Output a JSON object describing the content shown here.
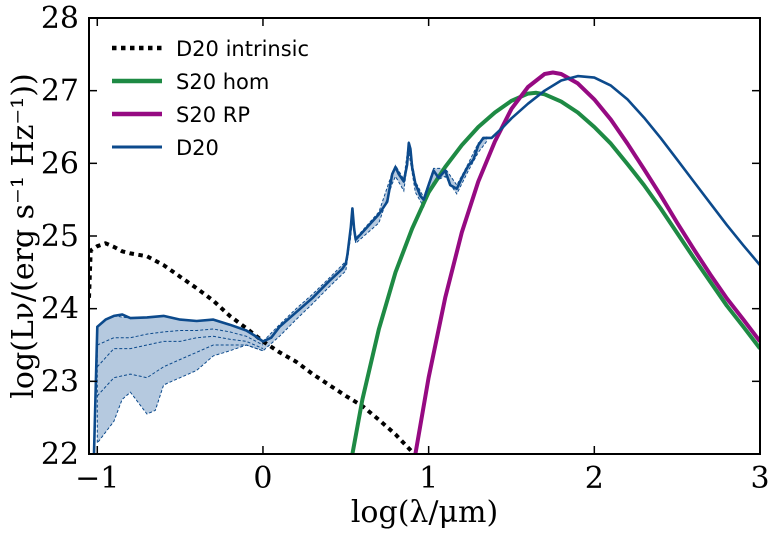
{
  "chart_data": {
    "type": "line",
    "xlabel": "log(λ/μm)",
    "ylabel": "log(Lν/(erg s⁻¹ Hz⁻¹))",
    "xlim": [
      -1.05,
      3
    ],
    "ylim": [
      22,
      28
    ],
    "xticks": [
      -1,
      0,
      1,
      2,
      3
    ],
    "xtick_labels": [
      "−1",
      "0",
      "1",
      "2",
      "3"
    ],
    "yticks": [
      22,
      23,
      24,
      25,
      26,
      27,
      28
    ],
    "ytick_labels": [
      "22",
      "23",
      "24",
      "25",
      "26",
      "27",
      "28"
    ],
    "grid": false,
    "legend_position": "top-left",
    "colors": {
      "d20_intrinsic": "#000000",
      "s20_hom": "#1e8a44",
      "s20_rp": "#960a82",
      "d20": "#0c4a8c",
      "band_fill": "#b5c9df"
    },
    "series": [
      {
        "name": "D20 intrinsic",
        "style": "dotted",
        "points": [
          [
            -1.05,
            24.15
          ],
          [
            -1.04,
            24.8
          ],
          [
            -1.0,
            24.86
          ],
          [
            -0.95,
            24.9
          ],
          [
            -0.9,
            24.85
          ],
          [
            -0.85,
            24.79
          ],
          [
            -0.8,
            24.76
          ],
          [
            -0.7,
            24.72
          ],
          [
            -0.6,
            24.6
          ],
          [
            -0.5,
            24.44
          ],
          [
            -0.4,
            24.28
          ],
          [
            -0.3,
            24.11
          ],
          [
            -0.2,
            23.9
          ],
          [
            -0.1,
            23.73
          ],
          [
            0.0,
            23.55
          ],
          [
            0.1,
            23.4
          ],
          [
            0.2,
            23.27
          ],
          [
            0.3,
            23.1
          ],
          [
            0.4,
            22.95
          ],
          [
            0.5,
            22.8
          ],
          [
            0.6,
            22.66
          ],
          [
            0.7,
            22.47
          ],
          [
            0.8,
            22.27
          ],
          [
            0.85,
            22.15
          ],
          [
            0.9,
            22.03
          ],
          [
            0.93,
            21.97
          ]
        ]
      },
      {
        "name": "S20 hom",
        "style": "solid",
        "points": [
          [
            0.54,
            22.0
          ],
          [
            0.6,
            22.75
          ],
          [
            0.7,
            23.72
          ],
          [
            0.8,
            24.5
          ],
          [
            0.9,
            25.1
          ],
          [
            1.0,
            25.6
          ],
          [
            1.1,
            25.95
          ],
          [
            1.2,
            26.25
          ],
          [
            1.3,
            26.5
          ],
          [
            1.4,
            26.7
          ],
          [
            1.5,
            26.86
          ],
          [
            1.6,
            26.96
          ],
          [
            1.65,
            26.97
          ],
          [
            1.7,
            26.95
          ],
          [
            1.8,
            26.85
          ],
          [
            1.9,
            26.7
          ],
          [
            2.0,
            26.5
          ],
          [
            2.1,
            26.27
          ],
          [
            2.2,
            25.99
          ],
          [
            2.3,
            25.7
          ],
          [
            2.4,
            25.38
          ],
          [
            2.5,
            25.04
          ],
          [
            2.6,
            24.7
          ],
          [
            2.7,
            24.37
          ],
          [
            2.8,
            24.04
          ],
          [
            2.9,
            23.75
          ],
          [
            3.0,
            23.45
          ]
        ]
      },
      {
        "name": "S20 RP",
        "style": "solid",
        "points": [
          [
            0.92,
            22.0
          ],
          [
            1.0,
            23.05
          ],
          [
            1.1,
            24.15
          ],
          [
            1.2,
            25.05
          ],
          [
            1.3,
            25.75
          ],
          [
            1.4,
            26.3
          ],
          [
            1.5,
            26.75
          ],
          [
            1.6,
            27.05
          ],
          [
            1.7,
            27.23
          ],
          [
            1.75,
            27.25
          ],
          [
            1.8,
            27.23
          ],
          [
            1.9,
            27.1
          ],
          [
            2.0,
            26.88
          ],
          [
            2.1,
            26.6
          ],
          [
            2.2,
            26.27
          ],
          [
            2.3,
            25.92
          ],
          [
            2.4,
            25.56
          ],
          [
            2.5,
            25.18
          ],
          [
            2.6,
            24.82
          ],
          [
            2.7,
            24.47
          ],
          [
            2.8,
            24.14
          ],
          [
            2.9,
            23.85
          ],
          [
            3.0,
            23.55
          ]
        ]
      },
      {
        "name": "D20",
        "style": "solid",
        "points": [
          [
            -1.02,
            22.0
          ],
          [
            -1.0,
            23.75
          ],
          [
            -0.95,
            23.85
          ],
          [
            -0.9,
            23.9
          ],
          [
            -0.85,
            23.92
          ],
          [
            -0.8,
            23.87
          ],
          [
            -0.7,
            23.88
          ],
          [
            -0.6,
            23.9
          ],
          [
            -0.5,
            23.85
          ],
          [
            -0.4,
            23.83
          ],
          [
            -0.3,
            23.85
          ],
          [
            -0.2,
            23.78
          ],
          [
            -0.1,
            23.7
          ],
          [
            -0.05,
            23.63
          ],
          [
            0.0,
            23.55
          ],
          [
            0.05,
            23.6
          ],
          [
            0.1,
            23.75
          ],
          [
            0.2,
            23.95
          ],
          [
            0.3,
            24.15
          ],
          [
            0.4,
            24.38
          ],
          [
            0.48,
            24.55
          ],
          [
            0.5,
            24.62
          ],
          [
            0.51,
            24.75
          ],
          [
            0.53,
            25.12
          ],
          [
            0.54,
            25.38
          ],
          [
            0.55,
            25.1
          ],
          [
            0.56,
            24.95
          ],
          [
            0.6,
            25.05
          ],
          [
            0.7,
            25.3
          ],
          [
            0.75,
            25.47
          ],
          [
            0.78,
            25.85
          ],
          [
            0.8,
            25.95
          ],
          [
            0.82,
            25.85
          ],
          [
            0.85,
            25.75
          ],
          [
            0.87,
            25.98
          ],
          [
            0.88,
            26.28
          ],
          [
            0.89,
            26.2
          ],
          [
            0.9,
            25.95
          ],
          [
            0.92,
            25.72
          ],
          [
            0.95,
            25.55
          ],
          [
            0.97,
            25.5
          ],
          [
            1.0,
            25.7
          ],
          [
            1.03,
            25.9
          ],
          [
            1.06,
            25.8
          ],
          [
            1.1,
            25.9
          ],
          [
            1.13,
            25.7
          ],
          [
            1.17,
            25.65
          ],
          [
            1.2,
            25.8
          ],
          [
            1.24,
            25.97
          ],
          [
            1.27,
            26.05
          ],
          [
            1.3,
            26.25
          ],
          [
            1.33,
            26.35
          ],
          [
            1.38,
            26.35
          ],
          [
            1.45,
            26.5
          ],
          [
            1.5,
            26.62
          ],
          [
            1.6,
            26.82
          ],
          [
            1.7,
            27.0
          ],
          [
            1.8,
            27.14
          ],
          [
            1.9,
            27.2
          ],
          [
            2.0,
            27.18
          ],
          [
            2.1,
            27.07
          ],
          [
            2.2,
            26.88
          ],
          [
            2.3,
            26.63
          ],
          [
            2.4,
            26.35
          ],
          [
            2.5,
            26.05
          ],
          [
            2.6,
            25.75
          ],
          [
            2.7,
            25.45
          ],
          [
            2.8,
            25.15
          ],
          [
            2.9,
            24.87
          ],
          [
            3.0,
            24.6
          ]
        ]
      }
    ],
    "band": {
      "upper": [
        [
          -1.0,
          23.75
        ],
        [
          -0.95,
          23.85
        ],
        [
          -0.9,
          23.9
        ],
        [
          -0.8,
          23.87
        ],
        [
          -0.7,
          23.88
        ],
        [
          -0.6,
          23.9
        ],
        [
          -0.5,
          23.85
        ],
        [
          -0.4,
          23.83
        ],
        [
          -0.3,
          23.85
        ],
        [
          -0.2,
          23.78
        ],
        [
          -0.1,
          23.7
        ],
        [
          0.0,
          23.55
        ],
        [
          0.1,
          23.78
        ],
        [
          0.2,
          24.0
        ],
        [
          0.3,
          24.2
        ],
        [
          0.4,
          24.42
        ],
        [
          0.5,
          24.65
        ],
        [
          0.53,
          25.12
        ],
        [
          0.54,
          25.38
        ],
        [
          0.56,
          24.97
        ],
        [
          0.7,
          25.33
        ],
        [
          0.78,
          25.87
        ],
        [
          0.8,
          25.97
        ],
        [
          0.85,
          25.78
        ],
        [
          0.88,
          26.3
        ],
        [
          0.92,
          25.75
        ],
        [
          0.97,
          25.53
        ],
        [
          1.03,
          25.93
        ],
        [
          1.1,
          25.93
        ],
        [
          1.17,
          25.7
        ],
        [
          1.24,
          26.0
        ],
        [
          1.3,
          26.28
        ],
        [
          1.35,
          26.36
        ]
      ],
      "lower": [
        [
          1.35,
          26.3
        ],
        [
          1.3,
          26.15
        ],
        [
          1.24,
          25.9
        ],
        [
          1.17,
          25.58
        ],
        [
          1.1,
          25.82
        ],
        [
          1.03,
          25.75
        ],
        [
          0.97,
          25.4
        ],
        [
          0.92,
          25.6
        ],
        [
          0.88,
          26.15
        ],
        [
          0.85,
          25.62
        ],
        [
          0.8,
          25.82
        ],
        [
          0.78,
          25.72
        ],
        [
          0.7,
          25.18
        ],
        [
          0.56,
          24.9
        ],
        [
          0.54,
          25.25
        ],
        [
          0.53,
          25.0
        ],
        [
          0.5,
          24.52
        ],
        [
          0.4,
          24.3
        ],
        [
          0.3,
          24.07
        ],
        [
          0.2,
          23.85
        ],
        [
          0.1,
          23.62
        ],
        [
          0.0,
          23.42
        ],
        [
          -0.1,
          23.5
        ],
        [
          -0.2,
          23.42
        ],
        [
          -0.3,
          23.35
        ],
        [
          -0.4,
          23.15
        ],
        [
          -0.5,
          23.05
        ],
        [
          -0.55,
          23.0
        ],
        [
          -0.6,
          22.95
        ],
        [
          -0.65,
          22.6
        ],
        [
          -0.7,
          22.55
        ],
        [
          -0.75,
          22.7
        ],
        [
          -0.8,
          22.85
        ],
        [
          -0.85,
          22.75
        ],
        [
          -0.9,
          22.45
        ],
        [
          -0.95,
          22.3
        ],
        [
          -1.0,
          22.15
        ]
      ],
      "inner": [
        [
          [
            -1.0,
            23.5
          ],
          [
            -0.9,
            23.6
          ],
          [
            -0.8,
            23.6
          ],
          [
            -0.7,
            23.65
          ],
          [
            -0.6,
            23.68
          ],
          [
            -0.5,
            23.7
          ],
          [
            -0.4,
            23.7
          ],
          [
            -0.3,
            23.72
          ],
          [
            -0.2,
            23.68
          ],
          [
            -0.1,
            23.62
          ],
          [
            0.0,
            23.5
          ]
        ],
        [
          [
            -1.0,
            23.2
          ],
          [
            -0.9,
            23.45
          ],
          [
            -0.8,
            23.45
          ],
          [
            -0.7,
            23.5
          ],
          [
            -0.6,
            23.55
          ],
          [
            -0.5,
            23.55
          ],
          [
            -0.4,
            23.6
          ],
          [
            -0.3,
            23.62
          ],
          [
            -0.2,
            23.58
          ],
          [
            -0.1,
            23.55
          ],
          [
            0.0,
            23.45
          ]
        ],
        [
          [
            -1.0,
            22.8
          ],
          [
            -0.9,
            23.05
          ],
          [
            -0.8,
            23.1
          ],
          [
            -0.7,
            23.05
          ],
          [
            -0.6,
            23.2
          ],
          [
            -0.5,
            23.3
          ],
          [
            -0.4,
            23.4
          ],
          [
            -0.3,
            23.5
          ],
          [
            -0.2,
            23.5
          ],
          [
            -0.1,
            23.5
          ],
          [
            0.0,
            23.42
          ]
        ]
      ]
    }
  }
}
